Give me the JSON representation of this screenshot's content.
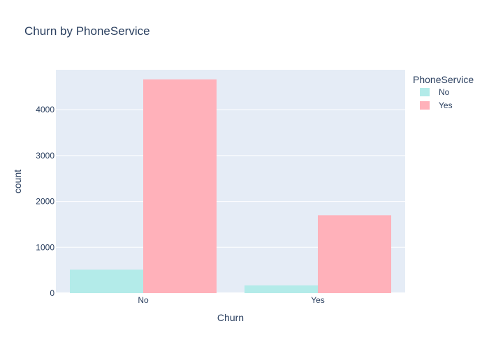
{
  "chart_data": {
    "type": "bar",
    "title": "Churn by PhoneService",
    "xlabel": "Churn",
    "ylabel": "count",
    "categories": [
      "No",
      "Yes"
    ],
    "ylim": [
      0,
      4870
    ],
    "yticks": [
      0,
      1000,
      2000,
      3000,
      4000
    ],
    "grid": true,
    "legend": {
      "title": "PhoneService",
      "placement": "top-right"
    },
    "series": [
      {
        "name": "No",
        "values": [
          512,
          170
        ],
        "color": "#b3ebe9"
      },
      {
        "name": "Yes",
        "values": [
          4662,
          1699
        ],
        "color": "#ffb1ba"
      }
    ],
    "colors": {
      "plot_bg": "#e5ecf6",
      "grid": "#ffffff",
      "text": "#2a3f5f"
    }
  }
}
